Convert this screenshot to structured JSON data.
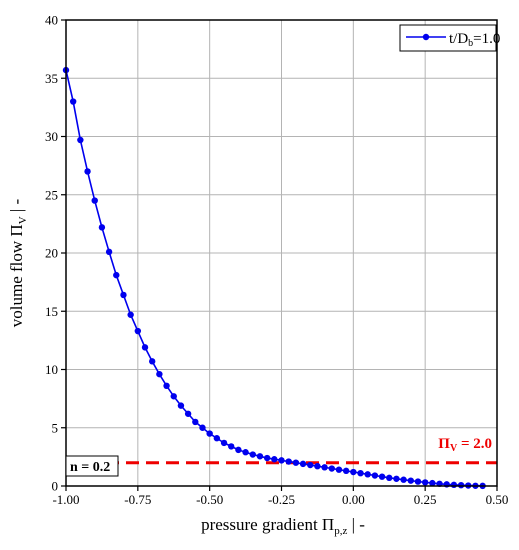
{
  "chart_data": {
    "type": "line",
    "xlabel": "pressure gradient Π",
    "xlabel_sub": "p,z",
    "xlabel_suffix": " | -",
    "ylabel": "volume flow Π",
    "ylabel_sub": "V",
    "ylabel_suffix": " | -",
    "xlim": [
      -1.0,
      0.5
    ],
    "ylim": [
      0,
      40
    ],
    "xticks": [
      -1.0,
      -0.75,
      -0.5,
      -0.25,
      0.0,
      0.25,
      0.5
    ],
    "xtick_labels": [
      "-1.00",
      "-0.75",
      "-0.50",
      "-0.25",
      "0.00",
      "0.25",
      "0.50"
    ],
    "yticks": [
      0,
      5,
      10,
      15,
      20,
      25,
      30,
      35,
      40
    ],
    "ytick_labels": [
      "0",
      "5",
      "10",
      "15",
      "20",
      "25",
      "30",
      "35",
      "40"
    ],
    "grid": true,
    "legend_position": "top-right",
    "series": [
      {
        "name": "t/D",
        "name_sub": "b",
        "name_suffix": "=1.0",
        "color": "#0000ee",
        "x": [
          -1.0,
          -0.975,
          -0.95,
          -0.925,
          -0.9,
          -0.875,
          -0.85,
          -0.825,
          -0.8,
          -0.775,
          -0.75,
          -0.725,
          -0.7,
          -0.675,
          -0.65,
          -0.625,
          -0.6,
          -0.575,
          -0.55,
          -0.525,
          -0.5,
          -0.475,
          -0.45,
          -0.425,
          -0.4,
          -0.375,
          -0.35,
          -0.325,
          -0.3,
          -0.275,
          -0.25,
          -0.225,
          -0.2,
          -0.175,
          -0.15,
          -0.125,
          -0.1,
          -0.075,
          -0.05,
          -0.025,
          0.0,
          0.025,
          0.05,
          0.075,
          0.1,
          0.125,
          0.15,
          0.175,
          0.2,
          0.225,
          0.25,
          0.275,
          0.3,
          0.325,
          0.35,
          0.375,
          0.4,
          0.425,
          0.45
        ],
        "y": [
          35.7,
          33.0,
          29.7,
          27.0,
          24.5,
          22.2,
          20.1,
          18.1,
          16.4,
          14.7,
          13.3,
          11.9,
          10.7,
          9.6,
          8.6,
          7.7,
          6.9,
          6.2,
          5.5,
          5.0,
          4.5,
          4.1,
          3.7,
          3.4,
          3.1,
          2.9,
          2.7,
          2.55,
          2.4,
          2.3,
          2.2,
          2.1,
          2.0,
          1.9,
          1.8,
          1.7,
          1.6,
          1.5,
          1.4,
          1.3,
          1.2,
          1.1,
          1.0,
          0.9,
          0.8,
          0.7,
          0.62,
          0.54,
          0.46,
          0.38,
          0.31,
          0.25,
          0.19,
          0.14,
          0.1,
          0.07,
          0.04,
          0.02,
          0.01
        ]
      }
    ],
    "reference_line": {
      "y": 2.0,
      "color": "#ee0000",
      "label": "Π",
      "label_sub": "V",
      "label_suffix": " = 2.0"
    },
    "annotation": {
      "text": "n = 0.2"
    }
  }
}
